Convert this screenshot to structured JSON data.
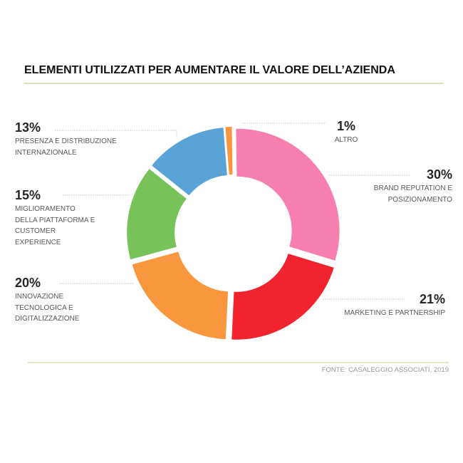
{
  "title": "ELEMENTI UTILIZZATI PER AUMENTARE IL VALORE DELL’AZIENDA",
  "source": "FONTE: CASALEGGIO ASSOCIATI, 2019",
  "labels": [
    {
      "id": "altro",
      "percent": "1%",
      "lines": [
        "ALTRO"
      ]
    },
    {
      "id": "brand",
      "percent": "30%",
      "lines": [
        "BRAND REPUTATION E",
        "POSIZIONAMENTO"
      ]
    },
    {
      "id": "marketing",
      "percent": "21%",
      "lines": [
        "MARKETING E PARTNERSHIP"
      ]
    },
    {
      "id": "innovazione",
      "percent": "20%",
      "lines": [
        "INNOVAZIONE",
        "TECNOLOGICA E",
        "DIGITALIZZAZIONE"
      ]
    },
    {
      "id": "miglioramento",
      "percent": "15%",
      "lines": [
        "MIGLIORAMENTO",
        "DELLA PIATTAFORMA E",
        "CUSTOMER",
        "EXPERIENCE"
      ]
    },
    {
      "id": "presenza",
      "percent": "13%",
      "lines": [
        "PRESENZA E DISTRIBUZIONE",
        "INTERNAZIONALE"
      ]
    }
  ],
  "colors": {
    "title_rule": "#D9E4BF",
    "footer_rule": "#DEE6C4",
    "leader_line": "#CFCFCF"
  },
  "chart_data": {
    "type": "pie",
    "subtype": "donut",
    "title": "ELEMENTI UTILIZZATI PER AUMENTARE IL VALORE DELL’AZIENDA",
    "categories": [
      "Altro",
      "Brand reputation e posizionamento",
      "Marketing e partnership",
      "Innovazione tecnologica e digitalizzazione",
      "Miglioramento della piattaforma e customer experience",
      "Presenza e distribuzione internazionale"
    ],
    "values": [
      1,
      30,
      21,
      20,
      15,
      13
    ],
    "unit": "%",
    "colors": [
      "#F9973F",
      "#F77FB0",
      "#F0232E",
      "#F9973F",
      "#77C259",
      "#5AA3D6"
    ],
    "start_angle_deg": -4.5,
    "direction": "clockwise",
    "exploded": true,
    "legend": "none (data labels with leader lines)",
    "source": "FONTE: CASALEGGIO ASSOCIATI, 2019"
  }
}
